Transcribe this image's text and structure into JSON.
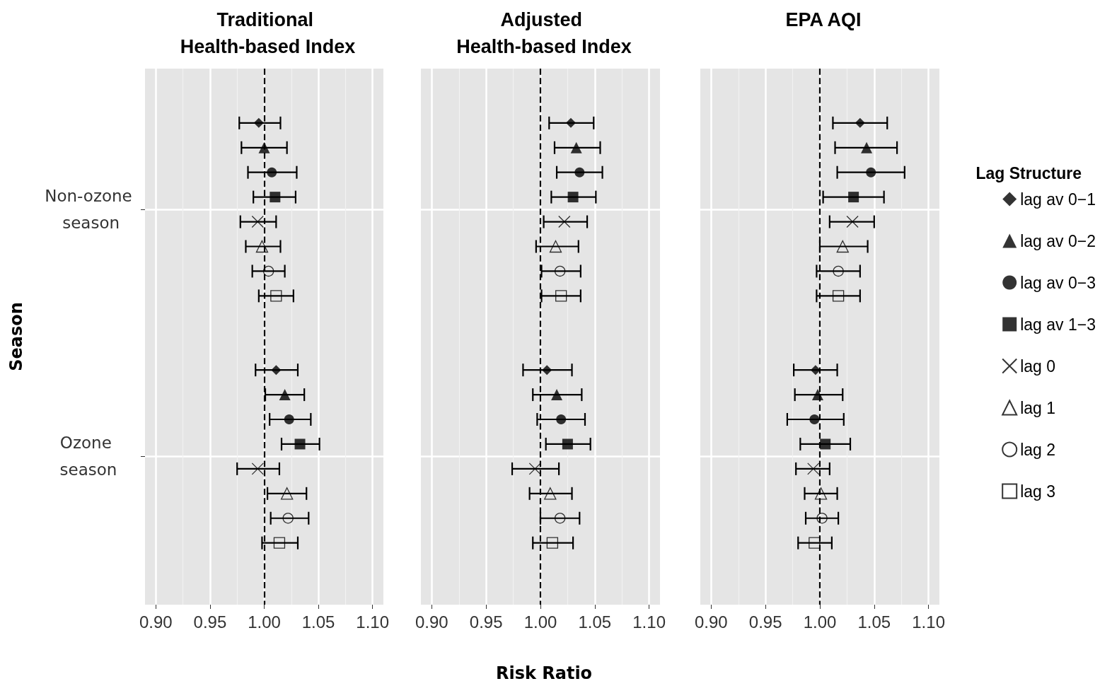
{
  "chart_data": [
    {
      "type": "scatter",
      "orientation": "horizontal",
      "title": "Traditional Health-based Index",
      "ylabel": "Season",
      "categories": [
        "Non-ozone season",
        "Ozone season"
      ],
      "xlim": [
        0.89,
        1.11
      ],
      "xticks": [
        {
          "value": 0.9,
          "label": "0.90"
        },
        {
          "value": 0.95,
          "label": "0.95"
        },
        {
          "value": 1.0,
          "label": "1.00"
        },
        {
          "value": 1.05,
          "label": "1.05"
        },
        {
          "value": 1.1,
          "label": "1.10"
        }
      ],
      "grid": true,
      "legend": false,
      "ref_lines": [
        {
          "axis": "x",
          "value": 1.0,
          "label": null,
          "color": "#000000",
          "line_style": "dashed"
        }
      ],
      "series": [
        {
          "color": "#000000",
          "marker": "diamond",
          "values": [
            0.995,
            1.011
          ],
          "errors": [
            [
              0.977,
              1.015
            ],
            [
              0.992,
              1.031
            ]
          ]
        },
        {
          "color": "#000000",
          "marker": "triangle",
          "values": [
            1.0,
            1.019
          ],
          "errors": [
            [
              0.979,
              1.021
            ],
            [
              1.001,
              1.037
            ]
          ]
        },
        {
          "color": "#000000",
          "marker": "circle",
          "values": [
            1.007,
            1.023
          ],
          "errors": [
            [
              0.985,
              1.03
            ],
            [
              1.005,
              1.043
            ]
          ]
        },
        {
          "color": "#000000",
          "marker": "square",
          "values": [
            1.01,
            1.033
          ],
          "errors": [
            [
              0.99,
              1.029
            ],
            [
              1.016,
              1.051
            ]
          ]
        },
        {
          "color": "#000000",
          "marker": "cross",
          "values": [
            0.994,
            0.994
          ],
          "errors": [
            [
              0.978,
              1.011
            ],
            [
              0.975,
              1.014
            ]
          ]
        },
        {
          "color": "#000000",
          "marker": "triangle-open",
          "values": [
            0.998,
            1.021
          ],
          "errors": [
            [
              0.983,
              1.015
            ],
            [
              1.003,
              1.039
            ]
          ]
        },
        {
          "color": "#000000",
          "marker": "circle-open",
          "values": [
            1.004,
            1.022
          ],
          "errors": [
            [
              0.989,
              1.019
            ],
            [
              1.006,
              1.041
            ]
          ]
        },
        {
          "color": "#000000",
          "marker": "square-open",
          "values": [
            1.011,
            1.014
          ],
          "errors": [
            [
              0.995,
              1.027
            ],
            [
              0.998,
              1.031
            ]
          ]
        }
      ]
    },
    {
      "type": "scatter",
      "orientation": "horizontal",
      "title": "Adjusted Health-based Index",
      "xlabel": "Risk Ratio",
      "categories": [
        "Non-ozone season",
        "Ozone season"
      ],
      "xlim": [
        0.89,
        1.11
      ],
      "xticks": [
        {
          "value": 0.9,
          "label": "0.90"
        },
        {
          "value": 0.95,
          "label": "0.95"
        },
        {
          "value": 1.0,
          "label": "1.00"
        },
        {
          "value": 1.05,
          "label": "1.05"
        },
        {
          "value": 1.1,
          "label": "1.10"
        }
      ],
      "grid": true,
      "legend": false,
      "tick_labels": "x",
      "ref_lines": [
        {
          "axis": "x",
          "value": 1.0,
          "label": null,
          "color": "#000000",
          "line_style": "dashed"
        }
      ],
      "series": [
        {
          "color": "#000000",
          "marker": "diamond",
          "values": [
            1.028,
            1.006
          ],
          "errors": [
            [
              1.008,
              1.049
            ],
            [
              0.984,
              1.029
            ]
          ]
        },
        {
          "color": "#000000",
          "marker": "triangle",
          "values": [
            1.033,
            1.015
          ],
          "errors": [
            [
              1.013,
              1.055
            ],
            [
              0.993,
              1.038
            ]
          ]
        },
        {
          "color": "#000000",
          "marker": "circle",
          "values": [
            1.036,
            1.019
          ],
          "errors": [
            [
              1.015,
              1.057
            ],
            [
              0.997,
              1.041
            ]
          ]
        },
        {
          "color": "#000000",
          "marker": "square",
          "values": [
            1.03,
            1.025
          ],
          "errors": [
            [
              1.01,
              1.051
            ],
            [
              1.005,
              1.046
            ]
          ]
        },
        {
          "color": "#000000",
          "marker": "cross",
          "values": [
            1.022,
            0.995
          ],
          "errors": [
            [
              1.003,
              1.043
            ],
            [
              0.974,
              1.017
            ]
          ]
        },
        {
          "color": "#000000",
          "marker": "triangle-open",
          "values": [
            1.014,
            1.009
          ],
          "errors": [
            [
              0.996,
              1.035
            ],
            [
              0.99,
              1.029
            ]
          ]
        },
        {
          "color": "#000000",
          "marker": "circle-open",
          "values": [
            1.018,
            1.018
          ],
          "errors": [
            [
              1.001,
              1.037
            ],
            [
              1.0,
              1.036
            ]
          ]
        },
        {
          "color": "#000000",
          "marker": "square-open",
          "values": [
            1.019,
            1.011
          ],
          "errors": [
            [
              1.001,
              1.037
            ],
            [
              0.993,
              1.03
            ]
          ]
        }
      ]
    },
    {
      "type": "scatter",
      "orientation": "horizontal",
      "title": "EPA AQI",
      "legend_title": "Lag Structure",
      "categories": [
        "Non-ozone season",
        "Ozone season"
      ],
      "xlim": [
        0.89,
        1.11
      ],
      "xticks": [
        {
          "value": 0.9,
          "label": "0.90"
        },
        {
          "value": 0.95,
          "label": "0.95"
        },
        {
          "value": 1.0,
          "label": "1.00"
        },
        {
          "value": 1.05,
          "label": "1.05"
        },
        {
          "value": 1.1,
          "label": "1.10"
        }
      ],
      "grid": true,
      "legend": "right",
      "tick_labels": "x",
      "ref_lines": [
        {
          "axis": "x",
          "value": 1.0,
          "label": null,
          "color": "#000000",
          "line_style": "dashed"
        }
      ],
      "series": [
        {
          "name": "lag av 0−1",
          "color": "#000000",
          "marker": "diamond",
          "values": [
            1.037,
            0.996
          ],
          "errors": [
            [
              1.012,
              1.062
            ],
            [
              0.976,
              1.016
            ]
          ]
        },
        {
          "name": "lag av 0−2",
          "color": "#000000",
          "marker": "triangle",
          "values": [
            1.043,
            0.998
          ],
          "errors": [
            [
              1.014,
              1.071
            ],
            [
              0.977,
              1.021
            ]
          ]
        },
        {
          "name": "lag av 0−3",
          "color": "#000000",
          "marker": "circle",
          "values": [
            1.047,
            0.995
          ],
          "errors": [
            [
              1.016,
              1.078
            ],
            [
              0.97,
              1.022
            ]
          ]
        },
        {
          "name": "lag av 1−3",
          "color": "#000000",
          "marker": "square",
          "values": [
            1.031,
            1.005
          ],
          "errors": [
            [
              1.003,
              1.059
            ],
            [
              0.982,
              1.028
            ]
          ]
        },
        {
          "name": "lag 0",
          "color": "#000000",
          "marker": "cross",
          "values": [
            1.03,
            0.994
          ],
          "errors": [
            [
              1.009,
              1.05
            ],
            [
              0.978,
              1.009
            ]
          ]
        },
        {
          "name": "lag 1",
          "color": "#000000",
          "marker": "triangle-open",
          "values": [
            1.021,
            1.001
          ],
          "errors": [
            [
              1.0,
              1.044
            ],
            [
              0.986,
              1.016
            ]
          ]
        },
        {
          "name": "lag 2",
          "color": "#000000",
          "marker": "circle-open",
          "values": [
            1.017,
            1.002
          ],
          "errors": [
            [
              0.997,
              1.037
            ],
            [
              0.987,
              1.017
            ]
          ]
        },
        {
          "name": "lag 3",
          "color": "#000000",
          "marker": "square-open",
          "values": [
            1.017,
            0.995
          ],
          "errors": [
            [
              0.997,
              1.037
            ],
            [
              0.98,
              1.011
            ]
          ]
        }
      ]
    }
  ]
}
